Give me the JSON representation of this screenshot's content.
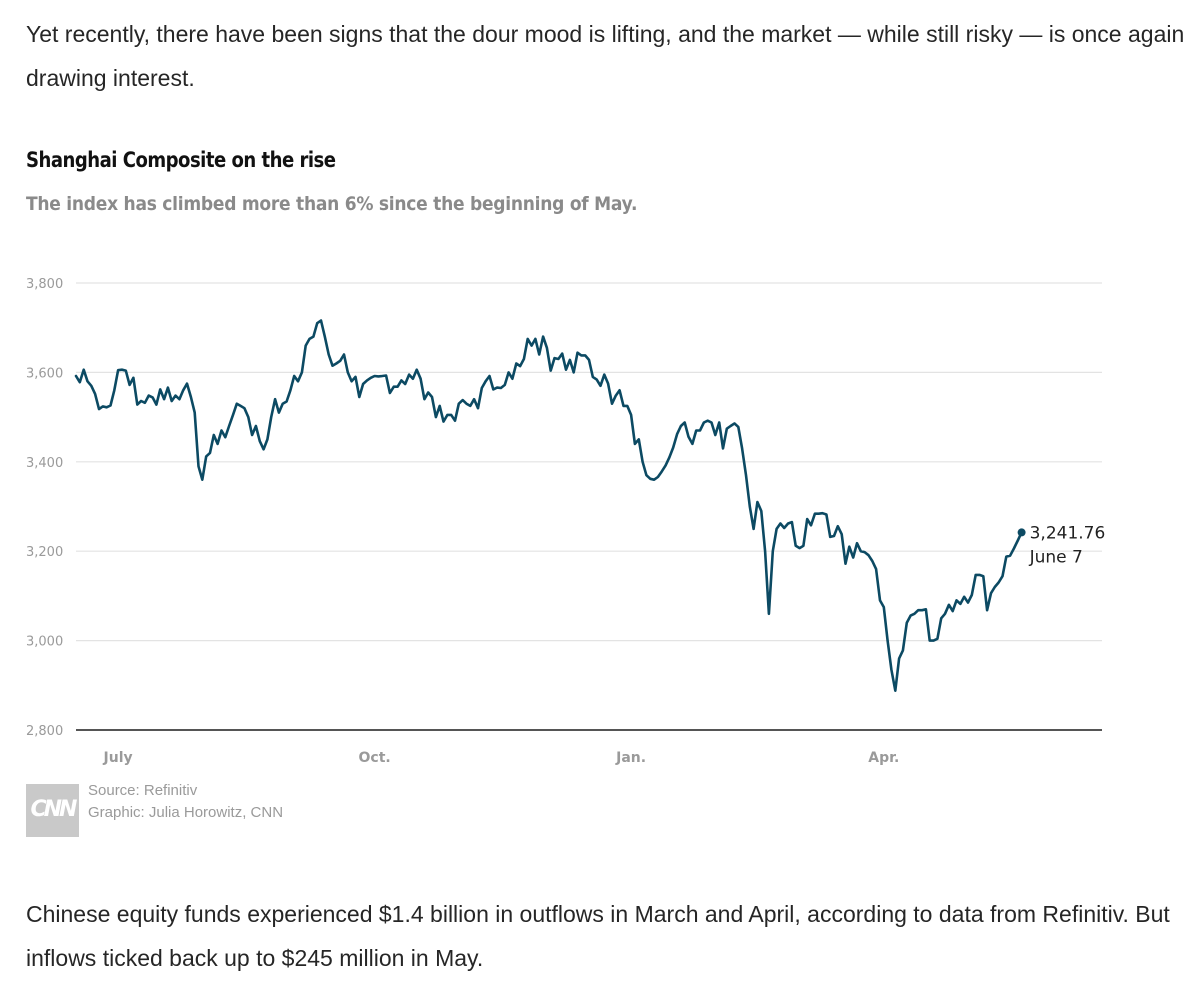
{
  "article": {
    "paragraph_before": "Yet recently, there have been signs that the dour mood is lifting, and the market — while still risky — is once again drawing interest.",
    "paragraph_after": "Chinese equity funds experienced $1.4 billion in outflows in March and April, according to data from Refinitiv. But inflows ticked back up to $245 million in May."
  },
  "chart_data": {
    "type": "line",
    "title": "Shanghai Composite on the rise",
    "subtitle": "The index has climbed more than 6% since the beginning of May.",
    "xlabel": "",
    "ylabel": "",
    "ylim": [
      2800,
      3800
    ],
    "y_ticks": [
      2800,
      3000,
      3200,
      3400,
      3600,
      3800
    ],
    "y_tick_labels": [
      "2,800",
      "3,000",
      "3,200",
      "3,400",
      "3,600",
      "3,800"
    ],
    "x_ticks": [
      {
        "label": "July",
        "x": 11
      },
      {
        "label": "Oct.",
        "x": 78
      },
      {
        "label": "Jan.",
        "x": 145
      },
      {
        "label": "Apr.",
        "x": 211
      }
    ],
    "x_range": [
      0,
      268
    ],
    "x_unit": "trading days from start of series",
    "grid": true,
    "legend": "none",
    "line_color": "#0c4a63",
    "series": [
      {
        "name": "",
        "values": [
          [
            0,
            3592
          ],
          [
            1,
            3578
          ],
          [
            2,
            3606
          ],
          [
            3,
            3580
          ],
          [
            4,
            3570
          ],
          [
            5,
            3552
          ],
          [
            6,
            3518
          ],
          [
            7,
            3524
          ],
          [
            8,
            3522
          ],
          [
            9,
            3526
          ],
          [
            10,
            3560
          ],
          [
            11,
            3605
          ],
          [
            12,
            3606
          ],
          [
            13,
            3604
          ],
          [
            14,
            3572
          ],
          [
            15,
            3588
          ],
          [
            16,
            3528
          ],
          [
            17,
            3536
          ],
          [
            18,
            3532
          ],
          [
            19,
            3548
          ],
          [
            20,
            3544
          ],
          [
            21,
            3528
          ],
          [
            22,
            3562
          ],
          [
            23,
            3540
          ],
          [
            24,
            3566
          ],
          [
            25,
            3536
          ],
          [
            26,
            3548
          ],
          [
            27,
            3540
          ],
          [
            28,
            3560
          ],
          [
            29,
            3575
          ],
          [
            30,
            3545
          ],
          [
            31,
            3510
          ],
          [
            32,
            3390
          ],
          [
            33,
            3360
          ],
          [
            34,
            3412
          ],
          [
            35,
            3420
          ],
          [
            36,
            3460
          ],
          [
            37,
            3440
          ],
          [
            38,
            3470
          ],
          [
            39,
            3455
          ],
          [
            40,
            3480
          ],
          [
            41,
            3505
          ],
          [
            42,
            3530
          ],
          [
            43,
            3525
          ],
          [
            44,
            3520
          ],
          [
            45,
            3500
          ],
          [
            46,
            3460
          ],
          [
            47,
            3480
          ],
          [
            48,
            3446
          ],
          [
            49,
            3428
          ],
          [
            50,
            3450
          ],
          [
            51,
            3500
          ],
          [
            52,
            3540
          ],
          [
            53,
            3510
          ],
          [
            54,
            3530
          ],
          [
            55,
            3535
          ],
          [
            56,
            3560
          ],
          [
            57,
            3592
          ],
          [
            58,
            3580
          ],
          [
            59,
            3600
          ],
          [
            60,
            3660
          ],
          [
            61,
            3675
          ],
          [
            62,
            3680
          ],
          [
            63,
            3710
          ],
          [
            64,
            3716
          ],
          [
            65,
            3680
          ],
          [
            66,
            3640
          ],
          [
            67,
            3615
          ],
          [
            68,
            3620
          ],
          [
            69,
            3626
          ],
          [
            70,
            3640
          ],
          [
            71,
            3600
          ],
          [
            72,
            3580
          ],
          [
            73,
            3590
          ],
          [
            74,
            3545
          ],
          [
            75,
            3574
          ],
          [
            76,
            3582
          ],
          [
            77,
            3588
          ],
          [
            78,
            3592
          ],
          [
            79,
            3591
          ],
          [
            80,
            3592
          ],
          [
            81,
            3593
          ],
          [
            82,
            3554
          ],
          [
            83,
            3568
          ],
          [
            84,
            3568
          ],
          [
            85,
            3582
          ],
          [
            86,
            3574
          ],
          [
            87,
            3595
          ],
          [
            88,
            3586
          ],
          [
            89,
            3606
          ],
          [
            90,
            3586
          ],
          [
            91,
            3540
          ],
          [
            92,
            3555
          ],
          [
            93,
            3545
          ],
          [
            94,
            3500
          ],
          [
            95,
            3525
          ],
          [
            96,
            3490
          ],
          [
            97,
            3505
          ],
          [
            98,
            3505
          ],
          [
            99,
            3492
          ],
          [
            100,
            3530
          ],
          [
            101,
            3538
          ],
          [
            102,
            3530
          ],
          [
            103,
            3525
          ],
          [
            104,
            3540
          ],
          [
            105,
            3520
          ],
          [
            106,
            3565
          ],
          [
            107,
            3580
          ],
          [
            108,
            3592
          ],
          [
            109,
            3562
          ],
          [
            110,
            3566
          ],
          [
            111,
            3565
          ],
          [
            112,
            3572
          ],
          [
            113,
            3600
          ],
          [
            114,
            3586
          ],
          [
            115,
            3620
          ],
          [
            116,
            3614
          ],
          [
            117,
            3630
          ],
          [
            118,
            3675
          ],
          [
            119,
            3660
          ],
          [
            120,
            3675
          ],
          [
            121,
            3640
          ],
          [
            122,
            3680
          ],
          [
            123,
            3655
          ],
          [
            124,
            3604
          ],
          [
            125,
            3632
          ],
          [
            126,
            3630
          ],
          [
            127,
            3642
          ],
          [
            128,
            3606
          ],
          [
            129,
            3628
          ],
          [
            130,
            3600
          ],
          [
            131,
            3644
          ],
          [
            132,
            3638
          ],
          [
            133,
            3638
          ],
          [
            134,
            3628
          ],
          [
            135,
            3590
          ],
          [
            136,
            3584
          ],
          [
            137,
            3570
          ],
          [
            138,
            3595
          ],
          [
            139,
            3575
          ],
          [
            140,
            3530
          ],
          [
            141,
            3548
          ],
          [
            142,
            3560
          ],
          [
            143,
            3525
          ],
          [
            144,
            3525
          ],
          [
            145,
            3505
          ],
          [
            146,
            3440
          ],
          [
            147,
            3450
          ],
          [
            148,
            3400
          ],
          [
            149,
            3370
          ],
          [
            150,
            3362
          ],
          [
            151,
            3360
          ],
          [
            152,
            3366
          ],
          [
            153,
            3378
          ],
          [
            154,
            3392
          ],
          [
            155,
            3410
          ],
          [
            156,
            3432
          ],
          [
            157,
            3462
          ],
          [
            158,
            3480
          ],
          [
            159,
            3488
          ],
          [
            160,
            3456
          ],
          [
            161,
            3440
          ],
          [
            162,
            3470
          ],
          [
            163,
            3470
          ],
          [
            164,
            3488
          ],
          [
            165,
            3492
          ],
          [
            166,
            3488
          ],
          [
            167,
            3460
          ],
          [
            168,
            3488
          ],
          [
            169,
            3430
          ],
          [
            170,
            3474
          ],
          [
            171,
            3480
          ],
          [
            172,
            3486
          ],
          [
            173,
            3478
          ],
          [
            174,
            3430
          ],
          [
            175,
            3370
          ],
          [
            176,
            3300
          ],
          [
            177,
            3250
          ],
          [
            178,
            3310
          ],
          [
            179,
            3290
          ],
          [
            180,
            3200
          ],
          [
            181,
            3060
          ],
          [
            182,
            3200
          ],
          [
            183,
            3250
          ],
          [
            184,
            3262
          ],
          [
            185,
            3252
          ],
          [
            186,
            3262
          ],
          [
            187,
            3265
          ],
          [
            188,
            3212
          ],
          [
            189,
            3207
          ],
          [
            190,
            3212
          ],
          [
            191,
            3272
          ],
          [
            192,
            3258
          ],
          [
            193,
            3284
          ],
          [
            194,
            3284
          ],
          [
            195,
            3285
          ],
          [
            196,
            3282
          ],
          [
            197,
            3232
          ],
          [
            198,
            3234
          ],
          [
            199,
            3256
          ],
          [
            200,
            3238
          ],
          [
            201,
            3172
          ],
          [
            202,
            3210
          ],
          [
            203,
            3186
          ],
          [
            204,
            3218
          ],
          [
            205,
            3200
          ],
          [
            206,
            3198
          ],
          [
            207,
            3191
          ],
          [
            208,
            3178
          ],
          [
            209,
            3160
          ],
          [
            210,
            3090
          ],
          [
            211,
            3075
          ],
          [
            212,
            3000
          ],
          [
            213,
            2935
          ],
          [
            214,
            2888
          ],
          [
            215,
            2960
          ],
          [
            216,
            2978
          ],
          [
            217,
            3040
          ],
          [
            218,
            3056
          ],
          [
            219,
            3060
          ],
          [
            220,
            3068
          ],
          [
            221,
            3068
          ],
          [
            222,
            3070
          ],
          [
            223,
            3000
          ],
          [
            224,
            3000
          ],
          [
            225,
            3004
          ],
          [
            226,
            3050
          ],
          [
            227,
            3060
          ],
          [
            228,
            3080
          ],
          [
            229,
            3066
          ],
          [
            230,
            3090
          ],
          [
            231,
            3082
          ],
          [
            232,
            3098
          ],
          [
            233,
            3085
          ],
          [
            234,
            3102
          ],
          [
            235,
            3147
          ],
          [
            236,
            3147
          ],
          [
            237,
            3144
          ],
          [
            238,
            3068
          ],
          [
            239,
            3106
          ],
          [
            240,
            3120
          ],
          [
            241,
            3130
          ],
          [
            242,
            3144
          ],
          [
            243,
            3188
          ],
          [
            244,
            3190
          ],
          [
            245,
            3206
          ],
          [
            246,
            3224
          ],
          [
            247,
            3242
          ]
        ]
      }
    ],
    "end_point": {
      "x": 247,
      "value": "3,241.76",
      "date": "June 7"
    },
    "source": "Source: Refinitiv",
    "credit": "Graphic: Julia Horowitz, CNN"
  },
  "brand": {
    "logo_text": "CNN"
  }
}
